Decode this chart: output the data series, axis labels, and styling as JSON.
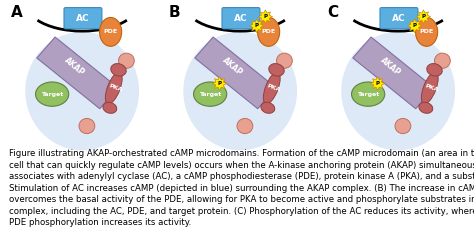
{
  "background_color": "#ffffff",
  "caption": "Figure illustrating AKAP-orchestrated cAMP microdomains. Formation of the cAMP microdomain (an area in the\ncell that can quickly regulate cAMP levels) occurs when the A-kinase anchoring protein (AKAP) simultaneously\nassociates with adenylyl cyclase (AC), a cAMP phosphodiesterase (PDE), protein kinase A (PKA), and a substrate.\nStimulation of AC increases cAMP (depicted in blue) surrounding the AKAP complex. (B) The increase in cAMP\novercomes the basal activity of the PDE, allowing for PKA to become active and phosphorylate substrates in the\ncomplex, including the AC, PDE, and target protein. (C) Phosphorylation of the AC reduces its activity, whereas\nPDE phosphorylation increases its activity.",
  "panel_labels": [
    "A",
    "B",
    "C"
  ],
  "panel_label_fontsize": 11,
  "panel_label_color": "#000000",
  "caption_fontsize": 6.2,
  "caption_color": "#000000",
  "colors": {
    "AC": "#5baee0",
    "PDE": "#e8843a",
    "AKAP": "#b09fc0",
    "PKA": "#c06060",
    "Target": "#90c060",
    "cAMP_glow": "#a0c0e8",
    "membrane_arc": "#000000",
    "free_mol": "#e8a090",
    "free_mol_edge": "#c07060"
  },
  "panels": [
    {
      "id": "A",
      "has_P_AC": false,
      "has_P_PDE": false,
      "has_P_target": false,
      "glow_alpha": 0.35
    },
    {
      "id": "B",
      "has_P_AC": true,
      "has_P_PDE": true,
      "has_P_target": true,
      "glow_alpha": 0.35
    },
    {
      "id": "C",
      "has_P_AC": true,
      "has_P_PDE": true,
      "has_P_target": true,
      "glow_alpha": 0.35
    }
  ],
  "panel_centers": [
    0.5,
    1.5,
    2.5
  ]
}
